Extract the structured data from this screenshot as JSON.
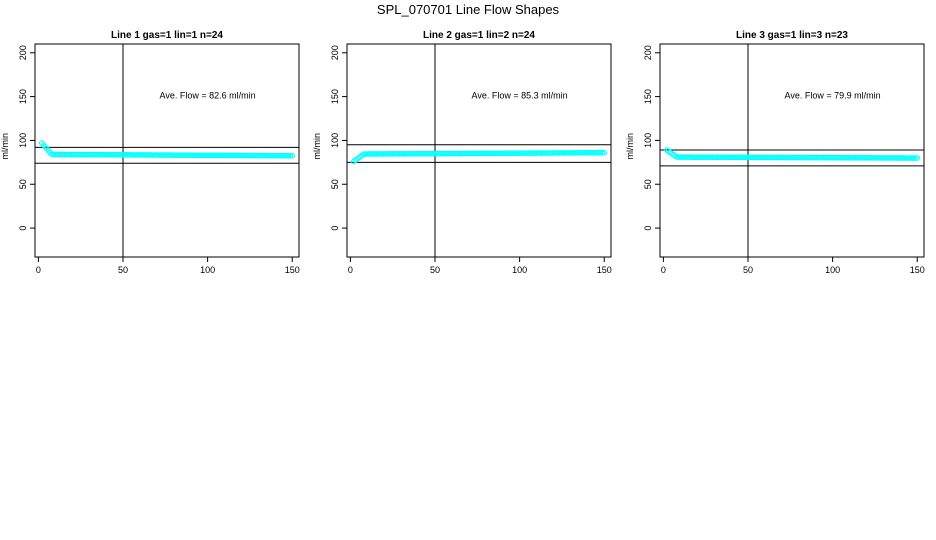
{
  "figure_title": "SPL_070701  Line Flow Shapes",
  "point_color": "#00ffff",
  "chart_data": [
    {
      "type": "scatter",
      "title": "Line 1 gas=1 lin=1 n=24",
      "ylabel": "ml/min",
      "xlim": [
        -2,
        154
      ],
      "ylim": [
        -33,
        210
      ],
      "xticks": [
        "0",
        "50",
        "100",
        "150"
      ],
      "yticks": [
        "0",
        "50",
        "100",
        "150",
        "200"
      ],
      "vline_x": 50,
      "hlines": [
        92,
        74
      ],
      "annotation": "Ave. Flow =  82.6  ml/min",
      "annotation_pos": [
        100,
        148
      ],
      "series": [
        {
          "start": 97,
          "mid": 84,
          "end": 82.5
        }
      ]
    },
    {
      "type": "scatter",
      "title": "Line 2 gas=1 lin=2 n=24",
      "ylabel": "ml/min",
      "xlim": [
        -2,
        154
      ],
      "ylim": [
        -33,
        210
      ],
      "xticks": [
        "0",
        "50",
        "100",
        "150"
      ],
      "yticks": [
        "0",
        "50",
        "100",
        "150",
        "200"
      ],
      "vline_x": 50,
      "hlines": [
        95,
        75
      ],
      "annotation": "Ave. Flow =  85.3  ml/min",
      "annotation_pos": [
        100,
        148
      ],
      "series": [
        {
          "start": 76,
          "mid": 84.5,
          "end": 86
        }
      ]
    },
    {
      "type": "scatter",
      "title": "Line 3 gas=1 lin=3 n=23",
      "ylabel": "ml/min",
      "xlim": [
        -2,
        154
      ],
      "ylim": [
        -33,
        210
      ],
      "xticks": [
        "0",
        "50",
        "100",
        "150"
      ],
      "yticks": [
        "0",
        "50",
        "100",
        "150",
        "200"
      ],
      "vline_x": 50,
      "hlines": [
        89,
        71
      ],
      "annotation": "Ave. Flow =  79.9  ml/min",
      "annotation_pos": [
        100,
        148
      ],
      "series": [
        {
          "start": 89,
          "mid": 81,
          "end": 79.9
        }
      ]
    }
  ]
}
